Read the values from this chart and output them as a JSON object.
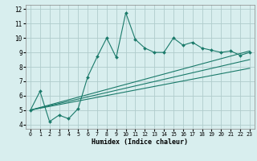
{
  "title": "",
  "xlabel": "Humidex (Indice chaleur)",
  "xlim": [
    -0.5,
    23.5
  ],
  "ylim": [
    3.7,
    12.3
  ],
  "xticks": [
    0,
    1,
    2,
    3,
    4,
    5,
    6,
    7,
    8,
    9,
    10,
    11,
    12,
    13,
    14,
    15,
    16,
    17,
    18,
    19,
    20,
    21,
    22,
    23
  ],
  "yticks": [
    4,
    5,
    6,
    7,
    8,
    9,
    10,
    11,
    12
  ],
  "bg_color": "#d8eeee",
  "grid_color": "#b0cccc",
  "line_color": "#1a7a6a",
  "main_line_x": [
    0,
    1,
    2,
    3,
    4,
    5,
    6,
    7,
    8,
    9,
    10,
    11,
    12,
    13,
    14,
    15,
    16,
    17,
    18,
    19,
    20,
    21,
    22,
    23
  ],
  "main_line_y": [
    5.0,
    6.3,
    4.2,
    4.65,
    4.4,
    5.1,
    7.3,
    8.7,
    10.0,
    8.65,
    11.75,
    9.9,
    9.3,
    9.0,
    9.0,
    10.0,
    9.5,
    9.7,
    9.3,
    9.15,
    9.0,
    9.1,
    8.8,
    9.0
  ],
  "linear_lines": [
    {
      "x": [
        0,
        23
      ],
      "y": [
        5.0,
        9.1
      ]
    },
    {
      "x": [
        0,
        23
      ],
      "y": [
        5.0,
        8.5
      ]
    },
    {
      "x": [
        0,
        23
      ],
      "y": [
        5.0,
        7.9
      ]
    }
  ]
}
